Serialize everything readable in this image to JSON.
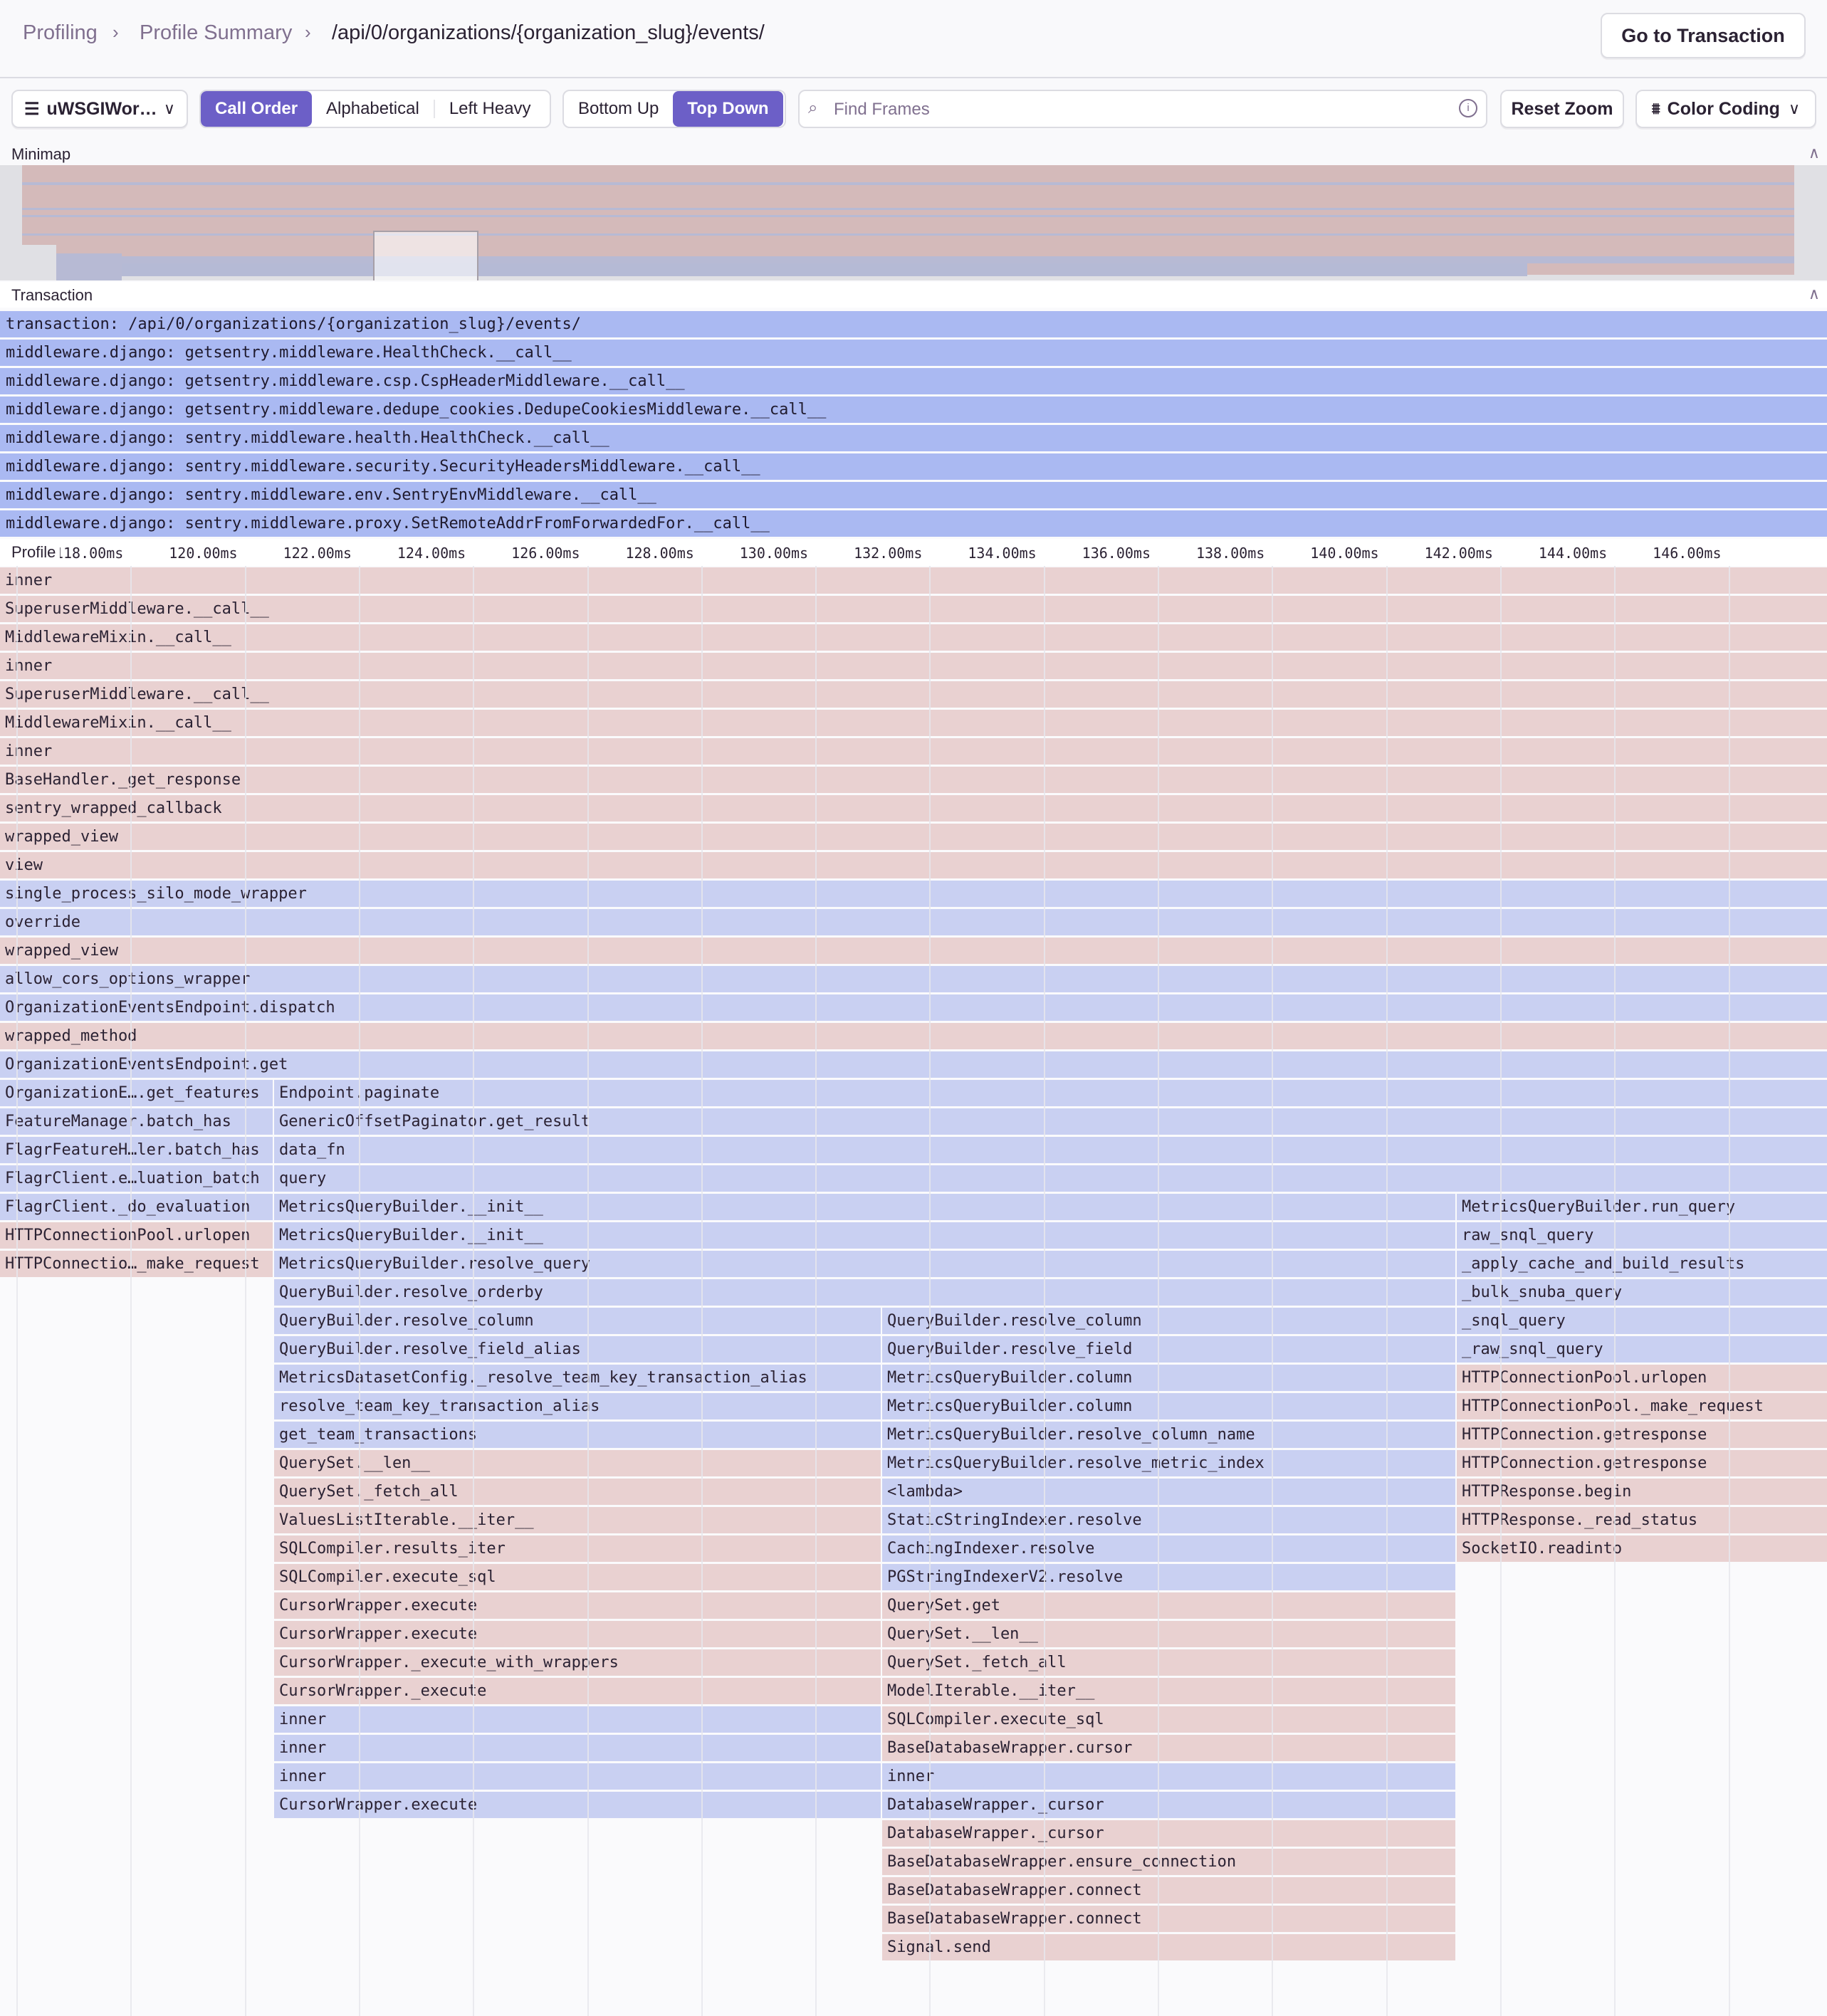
{
  "breadcrumb": [
    "Profiling",
    "Profile Summary",
    "/api/0/organizations/{organization_slug}/events/"
  ],
  "header": {
    "go_to_transaction": "Go to Transaction"
  },
  "toolbar": {
    "thread_select": "uWSGIWor…",
    "sort_options": [
      "Call Order",
      "Alphabetical",
      "Left Heavy"
    ],
    "sort_active": "Call Order",
    "view_options": [
      "Bottom Up",
      "Top Down"
    ],
    "view_active": "Top Down",
    "search_placeholder": "Find Frames",
    "reset_zoom": "Reset Zoom",
    "color_coding": "Color Coding"
  },
  "colors": {
    "accent": "#6c5fc7",
    "frame_red": "#e9d1d1",
    "frame_blue": "#c9d0f2",
    "transaction": "#aab9f2"
  },
  "minimap": {
    "label": "Minimap"
  },
  "transaction": {
    "label": "Transaction",
    "rows": [
      "transaction: /api/0/organizations/{organization_slug}/events/",
      "middleware.django: getsentry.middleware.HealthCheck.__call__",
      "middleware.django: getsentry.middleware.csp.CspHeaderMiddleware.__call__",
      "middleware.django: getsentry.middleware.dedupe_cookies.DedupeCookiesMiddleware.__call__",
      "middleware.django: sentry.middleware.health.HealthCheck.__call__",
      "middleware.django: sentry.middleware.security.SecurityHeadersMiddleware.__call__",
      "middleware.django: sentry.middleware.env.SentryEnvMiddleware.__call__",
      "middleware.django: sentry.middleware.proxy.SetRemoteAddrFromForwardedFor.__call__"
    ]
  },
  "axis": {
    "label": "Profile",
    "ticks": [
      "118.00ms",
      "120.00ms",
      "122.00ms",
      "124.00ms",
      "126.00ms",
      "128.00ms",
      "130.00ms",
      "132.00ms",
      "134.00ms",
      "136.00ms",
      "138.00ms",
      "140.00ms",
      "142.00ms",
      "144.00ms",
      "146.00ms"
    ]
  },
  "flame": [
    [
      {
        "lane": "AD",
        "tone": "red",
        "label": "inner"
      }
    ],
    [
      {
        "lane": "AD",
        "tone": "red",
        "label": "SuperuserMiddleware.__call__"
      }
    ],
    [
      {
        "lane": "AD",
        "tone": "red",
        "label": "MiddlewareMixin.__call__"
      }
    ],
    [
      {
        "lane": "AD",
        "tone": "red",
        "label": "inner"
      }
    ],
    [
      {
        "lane": "AD",
        "tone": "red",
        "label": "SuperuserMiddleware.__call__"
      }
    ],
    [
      {
        "lane": "AD",
        "tone": "red",
        "label": "MiddlewareMixin.__call__"
      }
    ],
    [
      {
        "lane": "AD",
        "tone": "red",
        "label": "inner"
      }
    ],
    [
      {
        "lane": "AD",
        "tone": "red",
        "label": "BaseHandler._get_response"
      }
    ],
    [
      {
        "lane": "AD",
        "tone": "red",
        "label": "sentry_wrapped_callback"
      }
    ],
    [
      {
        "lane": "AD",
        "tone": "red",
        "label": "wrapped_view"
      }
    ],
    [
      {
        "lane": "AD",
        "tone": "red",
        "label": "view"
      }
    ],
    [
      {
        "lane": "AD",
        "tone": "blue",
        "label": "single_process_silo_mode_wrapper"
      }
    ],
    [
      {
        "lane": "AD",
        "tone": "blue",
        "label": "override"
      }
    ],
    [
      {
        "lane": "AD",
        "tone": "red",
        "label": "wrapped_view"
      }
    ],
    [
      {
        "lane": "AD",
        "tone": "blue",
        "label": "allow_cors_options_wrapper"
      }
    ],
    [
      {
        "lane": "AD",
        "tone": "blue",
        "label": "OrganizationEventsEndpoint.dispatch"
      }
    ],
    [
      {
        "lane": "AD",
        "tone": "red",
        "label": "wrapped_method"
      }
    ],
    [
      {
        "lane": "AD",
        "tone": "blue",
        "label": "OrganizationEventsEndpoint.get"
      }
    ],
    [
      {
        "lane": "A",
        "tone": "blue",
        "label": "OrganizationE….get_features"
      },
      {
        "lane": "BD",
        "tone": "blue",
        "label": "Endpoint.paginate"
      }
    ],
    [
      {
        "lane": "A",
        "tone": "blue",
        "label": "FeatureManager.batch_has"
      },
      {
        "lane": "BD",
        "tone": "blue",
        "label": "GenericOffsetPaginator.get_result"
      }
    ],
    [
      {
        "lane": "A",
        "tone": "blue",
        "label": "FlagrFeatureH…ler.batch_has"
      },
      {
        "lane": "BD",
        "tone": "blue",
        "label": "data_fn"
      }
    ],
    [
      {
        "lane": "A",
        "tone": "blue",
        "label": "FlagrClient.e…luation_batch"
      },
      {
        "lane": "BD",
        "tone": "blue",
        "label": "query"
      }
    ],
    [
      {
        "lane": "A",
        "tone": "blue",
        "label": "FlagrClient._do_evaluation"
      },
      {
        "lane": "BC",
        "tone": "blue",
        "label": "MetricsQueryBuilder.__init__"
      },
      {
        "lane": "D",
        "tone": "blue",
        "label": "MetricsQueryBuilder.run_query"
      }
    ],
    [
      {
        "lane": "A",
        "tone": "red",
        "label": "HTTPConnectionPool.urlopen"
      },
      {
        "lane": "BC",
        "tone": "blue",
        "label": "MetricsQueryBuilder.__init__"
      },
      {
        "lane": "D",
        "tone": "blue",
        "label": "raw_snql_query"
      }
    ],
    [
      {
        "lane": "A",
        "tone": "red",
        "label": "HTTPConnectio…_make_request"
      },
      {
        "lane": "BC",
        "tone": "blue",
        "label": "MetricsQueryBuilder.resolve_query"
      },
      {
        "lane": "D",
        "tone": "blue",
        "label": "_apply_cache_and_build_results"
      }
    ],
    [
      {
        "lane": "BC",
        "tone": "blue",
        "label": "QueryBuilder.resolve_orderby"
      },
      {
        "lane": "D",
        "tone": "blue",
        "label": "_bulk_snuba_query"
      }
    ],
    [
      {
        "lane": "B",
        "tone": "blue",
        "label": "QueryBuilder.resolve_column"
      },
      {
        "lane": "C",
        "tone": "blue",
        "label": "QueryBuilder.resolve_column"
      },
      {
        "lane": "D",
        "tone": "blue",
        "label": "_snql_query"
      }
    ],
    [
      {
        "lane": "B",
        "tone": "blue",
        "label": "QueryBuilder.resolve_field_alias"
      },
      {
        "lane": "C",
        "tone": "blue",
        "label": "QueryBuilder.resolve_field"
      },
      {
        "lane": "D",
        "tone": "blue",
        "label": "_raw_snql_query"
      }
    ],
    [
      {
        "lane": "B",
        "tone": "blue",
        "label": "MetricsDatasetConfig._resolve_team_key_transaction_alias"
      },
      {
        "lane": "C",
        "tone": "blue",
        "label": "MetricsQueryBuilder.column"
      },
      {
        "lane": "D",
        "tone": "red",
        "label": "HTTPConnectionPool.urlopen"
      }
    ],
    [
      {
        "lane": "B",
        "tone": "blue",
        "label": "resolve_team_key_transaction_alias"
      },
      {
        "lane": "C",
        "tone": "blue",
        "label": "MetricsQueryBuilder.column"
      },
      {
        "lane": "D",
        "tone": "red",
        "label": "HTTPConnectionPool._make_request"
      }
    ],
    [
      {
        "lane": "B",
        "tone": "blue",
        "label": "get_team_transactions"
      },
      {
        "lane": "C",
        "tone": "blue",
        "label": "MetricsQueryBuilder.resolve_column_name"
      },
      {
        "lane": "D",
        "tone": "red",
        "label": "HTTPConnection.getresponse"
      }
    ],
    [
      {
        "lane": "B",
        "tone": "red",
        "label": "QuerySet.__len__"
      },
      {
        "lane": "C",
        "tone": "blue",
        "label": "MetricsQueryBuilder.resolve_metric_index"
      },
      {
        "lane": "D",
        "tone": "red",
        "label": "HTTPConnection.getresponse"
      }
    ],
    [
      {
        "lane": "B",
        "tone": "red",
        "label": "QuerySet._fetch_all"
      },
      {
        "lane": "C",
        "tone": "blue",
        "label": "<lambda>"
      },
      {
        "lane": "D",
        "tone": "red",
        "label": "HTTPResponse.begin"
      }
    ],
    [
      {
        "lane": "B",
        "tone": "red",
        "label": "ValuesListIterable.__iter__"
      },
      {
        "lane": "C",
        "tone": "blue",
        "label": "StaticStringIndexer.resolve"
      },
      {
        "lane": "D",
        "tone": "red",
        "label": "HTTPResponse._read_status"
      }
    ],
    [
      {
        "lane": "B",
        "tone": "red",
        "label": "SQLCompiler.results_iter"
      },
      {
        "lane": "C",
        "tone": "blue",
        "label": "CachingIndexer.resolve"
      },
      {
        "lane": "D",
        "tone": "red",
        "label": "SocketIO.readinto"
      }
    ],
    [
      {
        "lane": "B",
        "tone": "red",
        "label": "SQLCompiler.execute_sql"
      },
      {
        "lane": "C",
        "tone": "blue",
        "label": "PGStringIndexerV2.resolve"
      }
    ],
    [
      {
        "lane": "B",
        "tone": "red",
        "label": "CursorWrapper.execute"
      },
      {
        "lane": "C",
        "tone": "red",
        "label": "QuerySet.get"
      }
    ],
    [
      {
        "lane": "B",
        "tone": "red",
        "label": "CursorWrapper.execute"
      },
      {
        "lane": "C",
        "tone": "red",
        "label": "QuerySet.__len__"
      }
    ],
    [
      {
        "lane": "B",
        "tone": "red",
        "label": "CursorWrapper._execute_with_wrappers"
      },
      {
        "lane": "C",
        "tone": "red",
        "label": "QuerySet._fetch_all"
      }
    ],
    [
      {
        "lane": "B",
        "tone": "red",
        "label": "CursorWrapper._execute"
      },
      {
        "lane": "C",
        "tone": "red",
        "label": "ModelIterable.__iter__"
      }
    ],
    [
      {
        "lane": "B",
        "tone": "blue",
        "label": "inner"
      },
      {
        "lane": "C",
        "tone": "red",
        "label": "SQLCompiler.execute_sql"
      }
    ],
    [
      {
        "lane": "B",
        "tone": "blue",
        "label": "inner"
      },
      {
        "lane": "C",
        "tone": "red",
        "label": "BaseDatabaseWrapper.cursor"
      }
    ],
    [
      {
        "lane": "B",
        "tone": "blue",
        "label": "inner"
      },
      {
        "lane": "C",
        "tone": "blue",
        "label": "inner"
      }
    ],
    [
      {
        "lane": "B",
        "tone": "blue",
        "label": "CursorWrapper.execute"
      },
      {
        "lane": "C",
        "tone": "blue",
        "label": "DatabaseWrapper._cursor"
      }
    ],
    [
      {
        "lane": "C",
        "tone": "red",
        "label": "DatabaseWrapper._cursor"
      }
    ],
    [
      {
        "lane": "C",
        "tone": "red",
        "label": "BaseDatabaseWrapper.ensure_connection"
      }
    ],
    [
      {
        "lane": "C",
        "tone": "red",
        "label": "BaseDatabaseWrapper.connect"
      }
    ],
    [
      {
        "lane": "C",
        "tone": "red",
        "label": "BaseDatabaseWrapper.connect"
      }
    ],
    [
      {
        "lane": "C",
        "tone": "red",
        "label": "Signal.send"
      }
    ]
  ]
}
